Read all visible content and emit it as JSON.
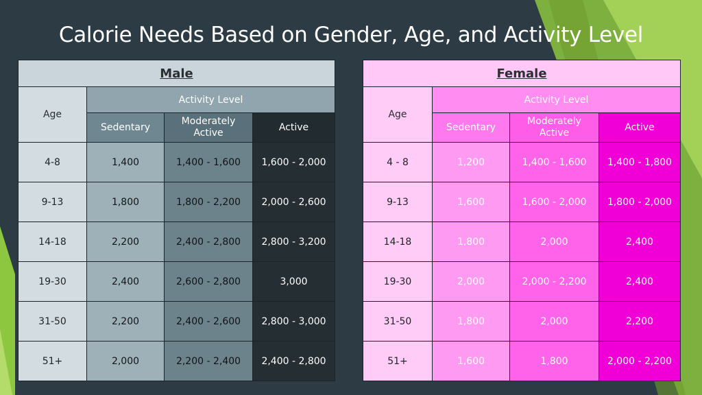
{
  "title": "Calorie Needs Based on Gender, Age, and Activity Level",
  "palette": {
    "background": "#2d3b44",
    "green_accent": "#8dc63f",
    "male_active": "#252e33",
    "female_active": "#f000d6"
  },
  "male": {
    "heading": "Male",
    "age_header": "Age",
    "activity_header": "Activity Level",
    "columns": [
      "Sedentary",
      "Moderately Active",
      "Active"
    ],
    "rows": [
      {
        "age": "4-8",
        "sedentary": "1,400",
        "moderate": "1,400 - 1,600",
        "active": "1,600 - 2,000"
      },
      {
        "age": "9-13",
        "sedentary": "1,800",
        "moderate": "1,800 - 2,200",
        "active": "2,000 - 2,600"
      },
      {
        "age": "14-18",
        "sedentary": "2,200",
        "moderate": "2,400 - 2,800",
        "active": "2,800 - 3,200"
      },
      {
        "age": "19-30",
        "sedentary": "2,400",
        "moderate": "2,600 - 2,800",
        "active": "3,000"
      },
      {
        "age": "31-50",
        "sedentary": "2,200",
        "moderate": "2,400 - 2,600",
        "active": "2,800 - 3,000"
      },
      {
        "age": "51+",
        "sedentary": "2,000",
        "moderate": "2,200 - 2,400",
        "active": "2,400 - 2,800"
      }
    ]
  },
  "female": {
    "heading": "Female",
    "age_header": "Age",
    "activity_header": "Activity Level",
    "columns": [
      "Sedentary",
      "Moderately Active",
      "Active"
    ],
    "rows": [
      {
        "age": "4 - 8",
        "sedentary": "1,200",
        "moderate": "1,400 - 1,600",
        "active": "1,400 - 1,800"
      },
      {
        "age": "9-13",
        "sedentary": "1,600",
        "moderate": "1,600 - 2,000",
        "active": "1,800 - 2,000"
      },
      {
        "age": "14-18",
        "sedentary": "1,800",
        "moderate": "2,000",
        "active": "2,400"
      },
      {
        "age": "19-30",
        "sedentary": "2,000",
        "moderate": "2,000 - 2,200",
        "active": "2,400"
      },
      {
        "age": "31-50",
        "sedentary": "1,800",
        "moderate": "2,000",
        "active": "2,200"
      },
      {
        "age": "51+",
        "sedentary": "1,600",
        "moderate": "1,800",
        "active": "2,000 - 2,200"
      }
    ]
  }
}
